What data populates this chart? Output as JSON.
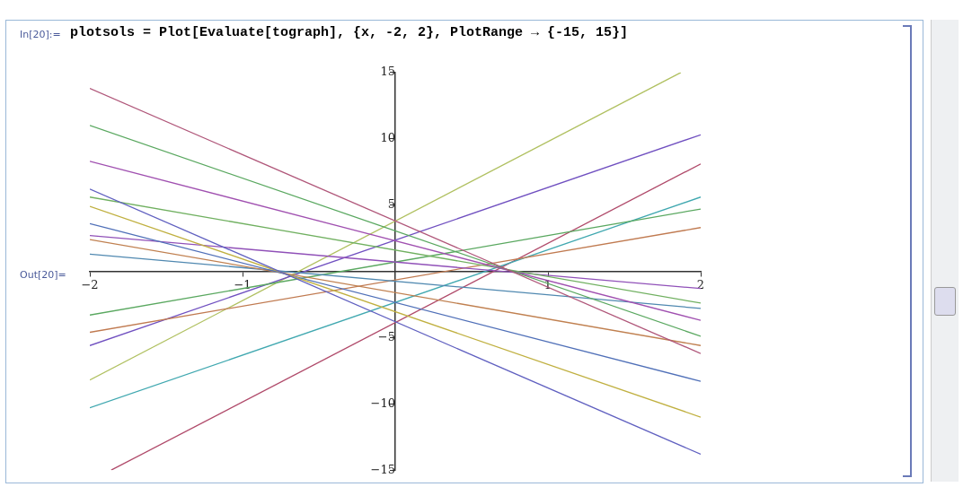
{
  "chart_data": {
    "type": "line",
    "title": "plotsols = Plot[Evaluate[tograph], {x, -2, 2}, PlotRange → {-15, 15}]",
    "annotations": [
      "In[20]:=",
      "Out[20]="
    ],
    "xlim": [
      -2,
      2
    ],
    "xticks": [
      -2,
      -1,
      1,
      2
    ],
    "ylim": [
      -15,
      15
    ],
    "yticks": [
      -15,
      -10,
      -5,
      5,
      10,
      15
    ],
    "grid": false,
    "legend": false,
    "marker": "none",
    "line_style": "solid",
    "series": [
      {
        "color": "#b0577a",
        "x": [
          -2,
          2
        ],
        "values": [
          13.8,
          -6.2
        ]
      },
      {
        "color": "#5aa860",
        "x": [
          -2,
          2
        ],
        "values": [
          11.0,
          -4.9
        ]
      },
      {
        "color": "#a050b0",
        "x": [
          -2,
          2
        ],
        "values": [
          8.3,
          -3.7
        ]
      },
      {
        "color": "#6060c0",
        "x": [
          -2,
          2
        ],
        "values": [
          6.2,
          -13.8
        ]
      },
      {
        "color": "#70b060",
        "x": [
          -2,
          2
        ],
        "values": [
          5.6,
          -2.4
        ]
      },
      {
        "color": "#c0b040",
        "x": [
          -2,
          2
        ],
        "values": [
          4.9,
          -11.0
        ]
      },
      {
        "color": "#5070b8",
        "x": [
          -2,
          2
        ],
        "values": [
          3.6,
          -8.3
        ]
      },
      {
        "color": "#9050b8",
        "x": [
          -2,
          2
        ],
        "values": [
          2.7,
          -1.3
        ]
      },
      {
        "color": "#c08050",
        "x": [
          -2,
          2
        ],
        "values": [
          2.4,
          -5.6
        ]
      },
      {
        "color": "#4f88b0",
        "x": [
          -2,
          2
        ],
        "values": [
          1.3,
          -2.8
        ]
      },
      {
        "color": "#5aa860",
        "x": [
          -2,
          2
        ],
        "values": [
          -3.3,
          4.7
        ]
      },
      {
        "color": "#c07a50",
        "x": [
          -2,
          2
        ],
        "values": [
          -4.6,
          3.3
        ]
      },
      {
        "color": "#7050c0",
        "x": [
          -2,
          2
        ],
        "values": [
          -5.6,
          10.3
        ]
      },
      {
        "color": "#b0c060",
        "x": [
          -2,
          1.87
        ],
        "values": [
          -8.2,
          15
        ]
      },
      {
        "color": "#40a8b0",
        "x": [
          -2,
          2
        ],
        "values": [
          -10.3,
          5.6
        ]
      },
      {
        "color": "#b04a6a",
        "x": [
          -1.86,
          2
        ],
        "values": [
          -15,
          8.1
        ]
      }
    ]
  }
}
